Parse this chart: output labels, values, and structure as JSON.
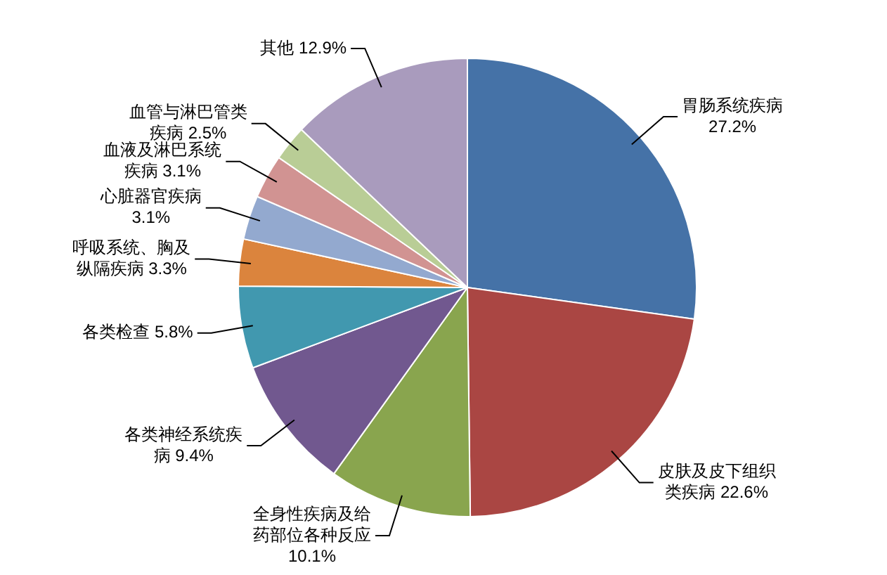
{
  "chart_data": {
    "type": "pie",
    "categories": [
      "胃肠系统疾病",
      "皮肤及皮下组织类疾病",
      "全身性疾病及给药部位各种反应",
      "各类神经系统疾病",
      "各类检查",
      "呼吸系统、胸及纵隔疾病",
      "心脏器官疾病",
      "血液及淋巴系统疾病",
      "血管与淋巴管类疾病",
      "其他"
    ],
    "values": [
      27.2,
      22.6,
      10.1,
      9.4,
      5.8,
      3.3,
      3.1,
      3.1,
      2.5,
      12.9
    ],
    "colors": [
      "#4572a7",
      "#aa4643",
      "#89a54e",
      "#71588f",
      "#4198af",
      "#db843d",
      "#93a9cf",
      "#d19392",
      "#b9cd96",
      "#a99bbd"
    ],
    "value_labels": [
      "27.2%",
      "22.6%",
      "10.1%",
      "9.4%",
      "5.8%",
      "3.3%",
      "3.1%",
      "3.1%",
      "2.5%",
      "12.9%"
    ],
    "legend": false
  }
}
